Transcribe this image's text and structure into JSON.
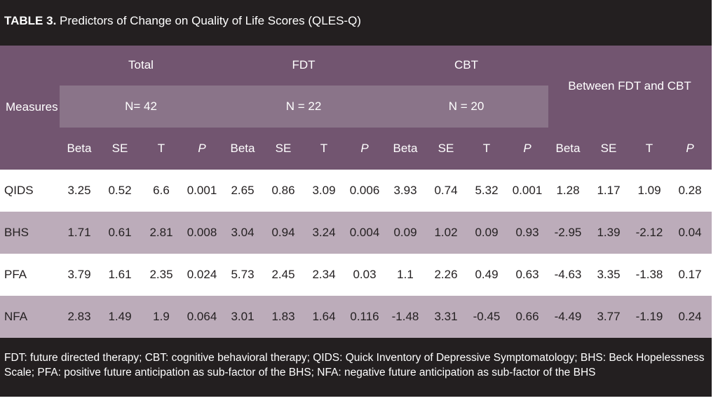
{
  "title": {
    "prefix": "TABLE 3.",
    "text": " Predictors of Change on Quality of Life Scores (QLES-Q)"
  },
  "header": {
    "measures": "Measures",
    "groups": [
      "Total",
      "FDT",
      "CBT",
      "Between FDT and CBT"
    ],
    "n_values": [
      "N= 42",
      "N = 22",
      "N = 20"
    ],
    "stats": [
      "Beta",
      "SE",
      "T",
      "P",
      "Beta",
      "SE",
      "T",
      "P",
      "Beta",
      "SE",
      "T",
      "P",
      "Beta",
      "SE",
      "T",
      "P"
    ]
  },
  "rows": [
    {
      "label": "QIDS",
      "values": [
        "3.25",
        "0.52",
        "6.6",
        "0.001",
        "2.65",
        "0.86",
        "3.09",
        "0.006",
        "3.93",
        "0.74",
        "5.32",
        "0.001",
        "1.28",
        "1.17",
        "1.09",
        "0.28"
      ]
    },
    {
      "label": "BHS",
      "values": [
        "1.71",
        "0.61",
        "2.81",
        "0.008",
        "3.04",
        "0.94",
        "3.24",
        "0.004",
        "0.09",
        "1.02",
        "0.09",
        "0.93",
        "-2.95",
        "1.39",
        "-2.12",
        "0.04"
      ]
    },
    {
      "label": "PFA",
      "values": [
        "3.79",
        "1.61",
        "2.35",
        "0.024",
        "5.73",
        "2.45",
        "2.34",
        "0.03",
        "1.1",
        "2.26",
        "0.49",
        "0.63",
        "-4.63",
        "3.35",
        "-1.38",
        "0.17"
      ]
    },
    {
      "label": "NFA",
      "values": [
        "2.83",
        "1.49",
        "1.9",
        "0.064",
        "3.01",
        "1.83",
        "1.64",
        "0.116",
        "-1.48",
        "3.31",
        "-0.45",
        "0.66",
        "-4.49",
        "3.77",
        "-1.19",
        "0.24"
      ]
    }
  ],
  "footnote": "FDT: future directed therapy; CBT: cognitive behavioral therapy; QIDS: Quick Inventory of Depressive Symptomatology; BHS: Beck Hopelessness Scale; PFA: positive future anticipation as sub-factor of the BHS; NFA: negative future anticipation as sub-factor of the BHS",
  "colors": {
    "title_bg": "#231f20",
    "header_bg": "#725570",
    "n_band": "#8a7489",
    "row_shade": "#bcacba",
    "text_dark": "#231f20",
    "text_light": "#ffffff"
  }
}
